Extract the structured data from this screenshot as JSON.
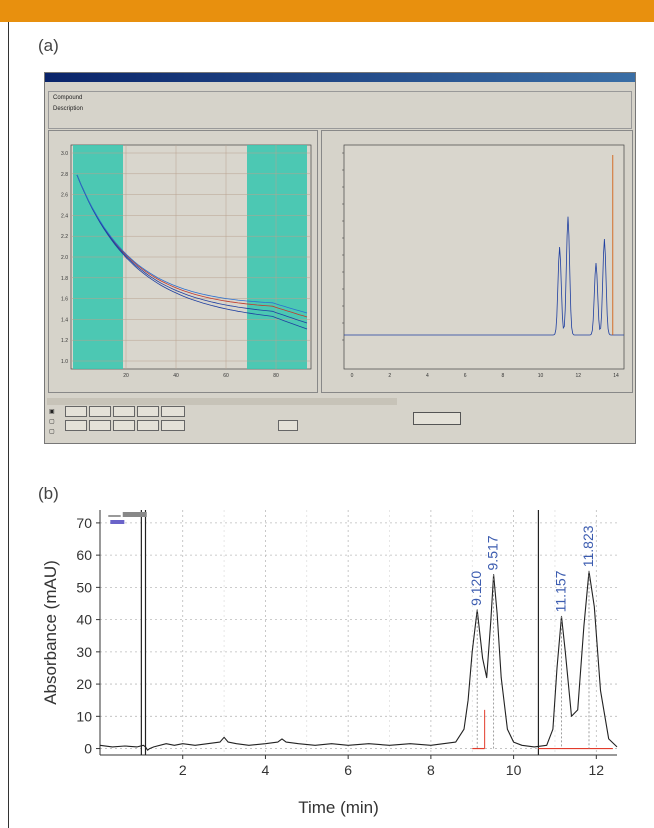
{
  "panel_labels": {
    "a": "(a)",
    "b": "(b)"
  },
  "colors": {
    "top_bar": "#e8900e",
    "peak_label": "#3d5db0",
    "baseline_red": "#e23b2b",
    "highlight": "#3cc7b0"
  },
  "window": {
    "title": "",
    "menu": [
      "",
      "",
      ""
    ],
    "info": {
      "compound_label": "Compound",
      "description_label": "Description",
      "compound_value": "",
      "description_value": ""
    },
    "left_plot": {
      "title": "",
      "x_ticks": [
        "20",
        "40",
        "60",
        "80"
      ],
      "y_ticks": [
        "3.0",
        "2.8",
        "2.6",
        "2.4",
        "2.2",
        "2.0",
        "1.8",
        "1.6",
        "1.4",
        "1.2",
        "1.0"
      ]
    },
    "right_plot": {
      "title": "",
      "x_ticks": [
        "0",
        "2",
        "4",
        "6",
        "8",
        "10",
        "12",
        "14"
      ]
    },
    "buttons": {
      "b1": "",
      "b2": "",
      "b3": "",
      "b4": "",
      "b5": "",
      "b6": "",
      "b7": "",
      "b8": "",
      "b9": "",
      "b10": "",
      "b11": "",
      "b12": ""
    }
  },
  "chart_data": {
    "type": "line",
    "title": "",
    "xlabel": "Time (min)",
    "ylabel": "Absorbance (mAU)",
    "xlim": [
      0,
      12.5
    ],
    "ylim": [
      -2,
      74
    ],
    "x_ticks": [
      2,
      4,
      6,
      8,
      10,
      12
    ],
    "y_ticks": [
      0,
      10,
      20,
      30,
      40,
      50,
      60,
      70
    ],
    "grid": true,
    "legend": {
      "position": "top-left",
      "entries": [
        ""
      ]
    },
    "peaks": [
      {
        "label": "9.120",
        "x": 9.12,
        "y": 43
      },
      {
        "label": "9.517",
        "x": 9.517,
        "y": 54
      },
      {
        "label": "11.157",
        "x": 11.157,
        "y": 41
      },
      {
        "label": "11.823",
        "x": 11.823,
        "y": 55
      }
    ],
    "series": [
      {
        "x": [
          0.0,
          0.3,
          0.6,
          0.9,
          1.05,
          1.1,
          1.15,
          1.2,
          1.3,
          1.6,
          1.8,
          2.0,
          2.3,
          2.6,
          2.9,
          3.0,
          3.1,
          3.3,
          3.6,
          4.0,
          4.3,
          4.4,
          4.5,
          4.8,
          5.2,
          5.6,
          6.0,
          6.5,
          7.0,
          7.5,
          8.0,
          8.3,
          8.6,
          8.8,
          8.9,
          9.0,
          9.12,
          9.25,
          9.35,
          9.45,
          9.517,
          9.6,
          9.7,
          9.85,
          10.0,
          10.2,
          10.5,
          10.8,
          10.95,
          11.05,
          11.157,
          11.25,
          11.4,
          11.55,
          11.7,
          11.823,
          11.95,
          12.1,
          12.3,
          12.5
        ],
        "y": [
          1,
          0.5,
          0.8,
          0.5,
          1,
          0.5,
          -0.5,
          0,
          0.5,
          1.5,
          1,
          1.5,
          1,
          1.5,
          2,
          3.5,
          2,
          1.5,
          1,
          1.5,
          2,
          3,
          2,
          1.5,
          1,
          1.5,
          1,
          1.5,
          1,
          1.5,
          1,
          1.5,
          2,
          6,
          15,
          30,
          43,
          28,
          22,
          40,
          54,
          42,
          22,
          6,
          2,
          1,
          0.5,
          1,
          6,
          25,
          41,
          30,
          10,
          12,
          38,
          55,
          44,
          18,
          3,
          0.5
        ]
      }
    ],
    "vertical_lines": [
      1.0,
      1.1,
      10.6
    ],
    "baseline_segments": [
      [
        9.0,
        9.3
      ],
      [
        10.6,
        12.4
      ]
    ]
  }
}
